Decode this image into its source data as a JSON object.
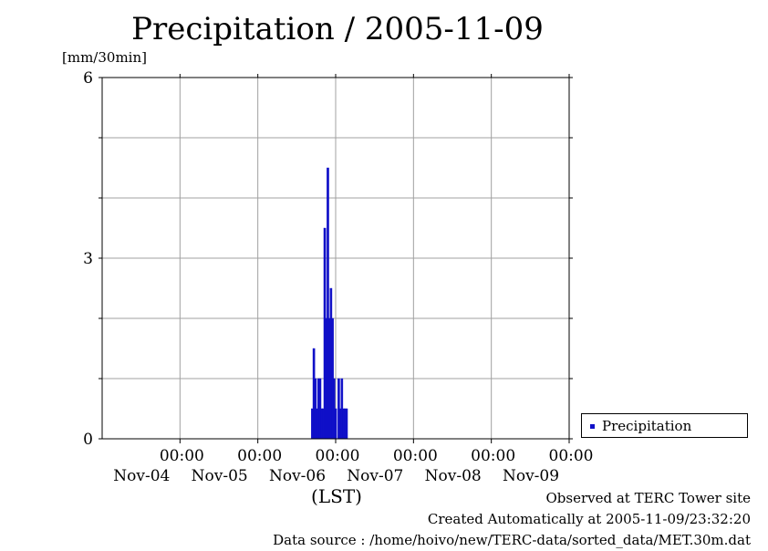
{
  "chart_data": {
    "type": "bar",
    "title": "Precipitation / 2005-11-09",
    "ylabel": "[mm/30min]",
    "xlabel": "(LST)",
    "ylim": [
      0,
      6
    ],
    "y_ticks": [
      0,
      3,
      6
    ],
    "x_range_days": [
      0,
      6
    ],
    "x_ticks": [
      {
        "day": 1,
        "time": "00:00",
        "date": "Nov-04"
      },
      {
        "day": 2,
        "time": "00:00",
        "date": "Nov-05"
      },
      {
        "day": 3,
        "time": "00:00",
        "date": "Nov-06"
      },
      {
        "day": 4,
        "time": "00:00",
        "date": "Nov-07"
      },
      {
        "day": 5,
        "time": "00:00",
        "date": "Nov-08"
      },
      {
        "day": 6,
        "time": "00:00",
        "date": "Nov-09"
      }
    ],
    "grid": true,
    "legend_position": "bottom-right",
    "series": [
      {
        "name": "Precipitation",
        "color": "#1010c8",
        "bar_width_days": 0.020833,
        "points": [
          {
            "day": 2.7,
            "value": 0.5
          },
          {
            "day": 2.72,
            "value": 1.5
          },
          {
            "day": 2.74,
            "value": 1.0
          },
          {
            "day": 2.76,
            "value": 0.5
          },
          {
            "day": 2.78,
            "value": 1.0
          },
          {
            "day": 2.8,
            "value": 1.0
          },
          {
            "day": 2.82,
            "value": 0.5
          },
          {
            "day": 2.84,
            "value": 0.5
          },
          {
            "day": 2.86,
            "value": 3.5
          },
          {
            "day": 2.88,
            "value": 2.0
          },
          {
            "day": 2.9,
            "value": 4.5
          },
          {
            "day": 2.92,
            "value": 2.0
          },
          {
            "day": 2.94,
            "value": 2.5
          },
          {
            "day": 2.96,
            "value": 2.0
          },
          {
            "day": 2.98,
            "value": 1.0
          },
          {
            "day": 3.0,
            "value": 0.5
          },
          {
            "day": 3.04,
            "value": 1.0
          },
          {
            "day": 3.06,
            "value": 0.5
          },
          {
            "day": 3.08,
            "value": 1.0
          },
          {
            "day": 3.1,
            "value": 0.5
          },
          {
            "day": 3.12,
            "value": 0.5
          },
          {
            "day": 3.14,
            "value": 0.5
          }
        ]
      }
    ]
  },
  "legend": {
    "label": "Precipitation"
  },
  "footer": {
    "observed": "Observed at TERC Tower site",
    "created": "Created Automatically at 2005-11-09/23:32:20",
    "source": "Data source : /home/hoivo/new/TERC-data/sorted_data/MET.30m.dat"
  }
}
